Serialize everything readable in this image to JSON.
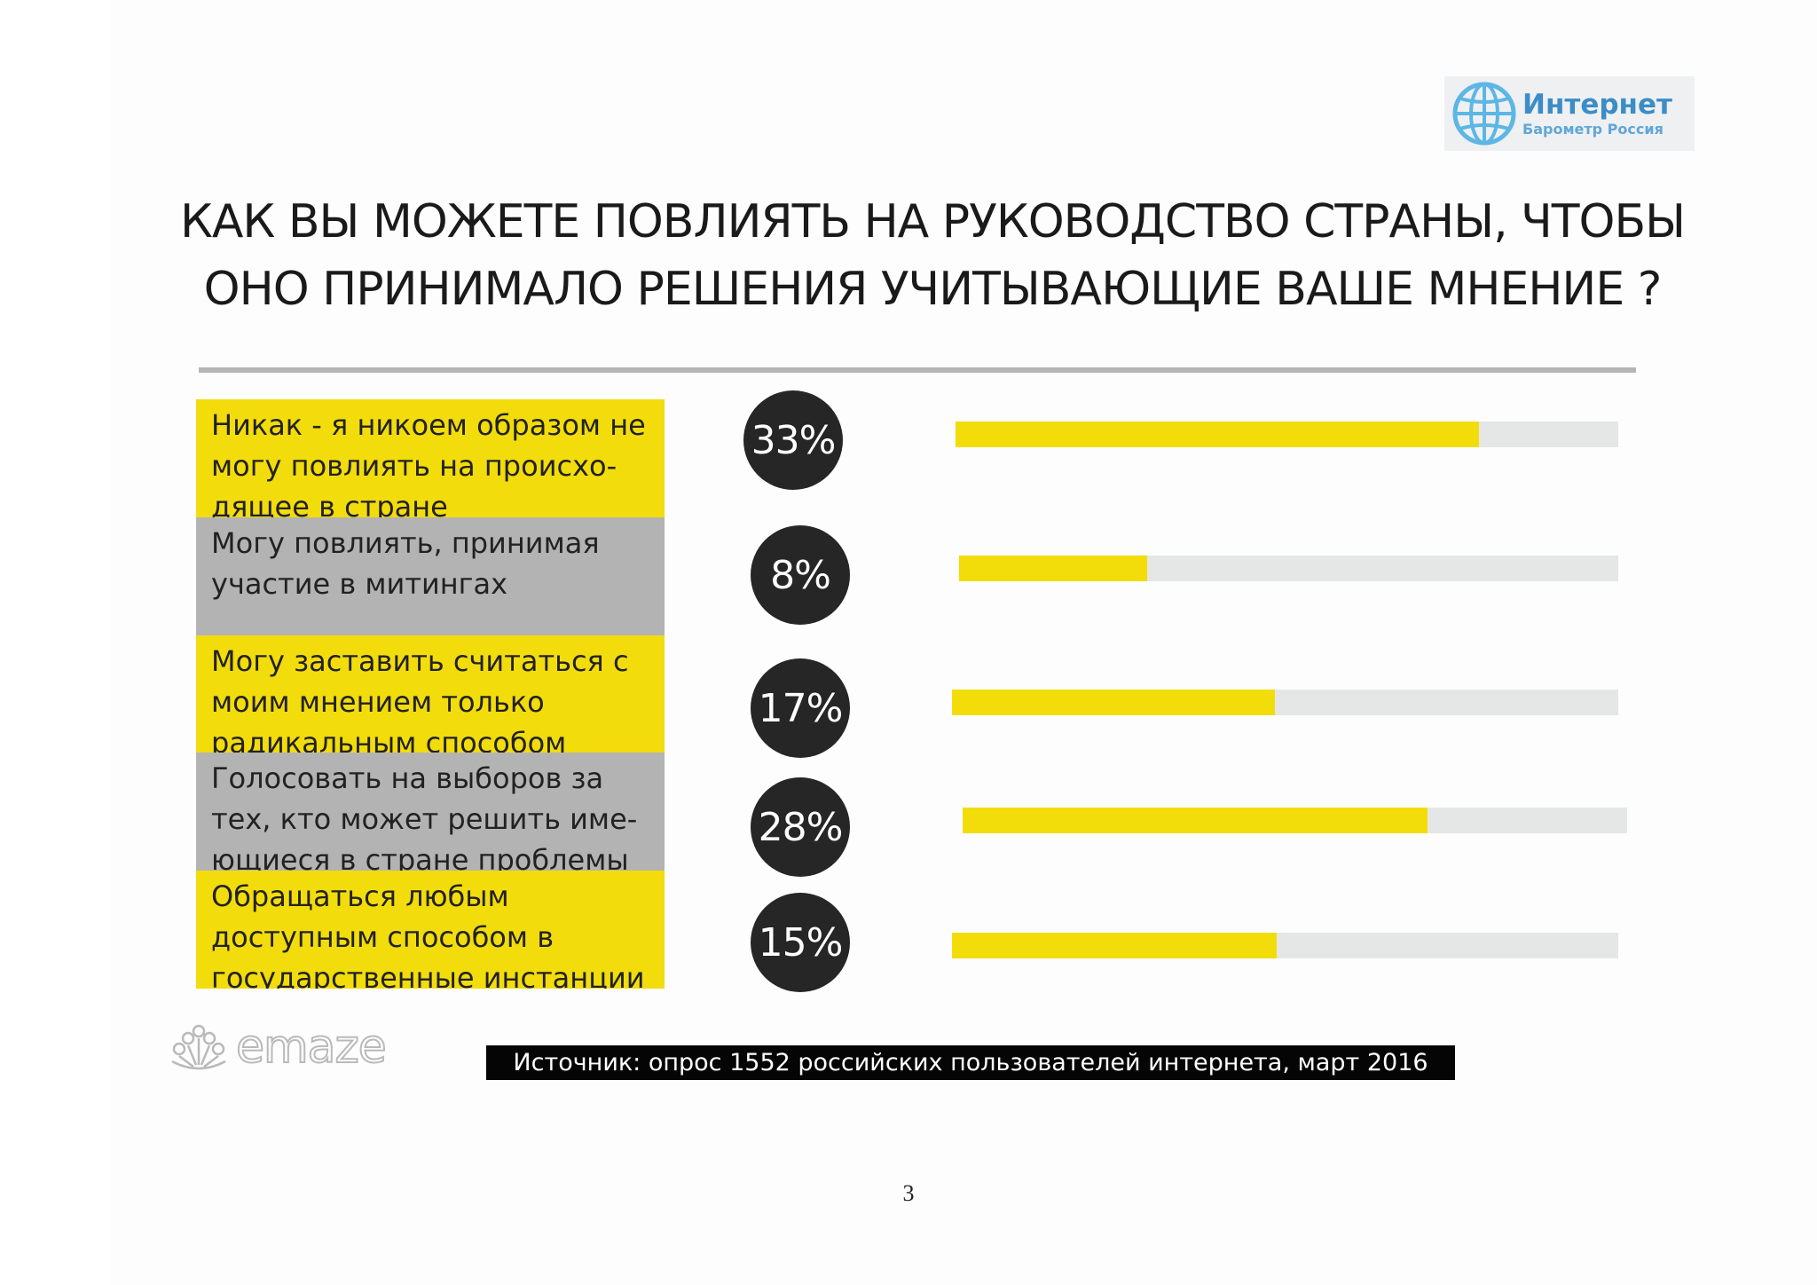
{
  "logo": {
    "main": "Интернет",
    "sub": "Барометр Россия"
  },
  "title": {
    "line1": "КАК ВЫ МОЖЕТЕ ПОВЛИЯТЬ НА РУКОВОДСТВО СТРАНЫ, ЧТОБЫ",
    "line2": "ОНО ПРИНИМАЛО РЕШЕНИЯ УЧИТЫВАЮЩИЕ ВАШЕ МНЕНИЕ ?"
  },
  "chart_data": {
    "type": "bar",
    "categories": [
      "Никак - я никоем образом не могу повлиять на происхо-дящее в стране",
      "Могу повлиять, принимая участие в митингах",
      "Могу заставить считаться с моим мнением только радикальным способом",
      "Голосовать на выборов за тех, кто может решить име-ющиеся в стране проблемы",
      "Обращаться любым доступным способом в государственные инстанции"
    ],
    "values": [
      33,
      8,
      17,
      28,
      15
    ],
    "value_labels": [
      "33%",
      "8%",
      "17%",
      "28%",
      "15%"
    ],
    "bar_fill_fraction": [
      0.79,
      0.285,
      0.485,
      0.7,
      0.487
    ],
    "label_lines": [
      [
        "Никак - я никоем образом не",
        "могу повлиять на происхо-",
        "дящее в стране"
      ],
      [
        "Могу повлиять, принимая",
        "участие в митингах"
      ],
      [
        "Могу заставить считаться с",
        "моим мнением только",
        "радикальным способом"
      ],
      [
        "Голосовать  на выборов за",
        "тех, кто может решить име-",
        "ющиеся в стране проблемы"
      ],
      [
        "Обращаться любым",
        "доступным способом в",
        "государственные инстанции"
      ]
    ],
    "label_colors": [
      "#f2dc0c",
      "#b3b3b4",
      "#f2dc0c",
      "#b3b3b4",
      "#f2dc0c"
    ],
    "unit": "%",
    "colors": {
      "fill": "#f2dd0b",
      "track": "#e5e7e6",
      "circle": "#262626"
    }
  },
  "footer": {
    "brand": "emaze",
    "source": "Источник: опрос 1552 российских пользователей интернета, март 2016",
    "page_number": "3"
  }
}
